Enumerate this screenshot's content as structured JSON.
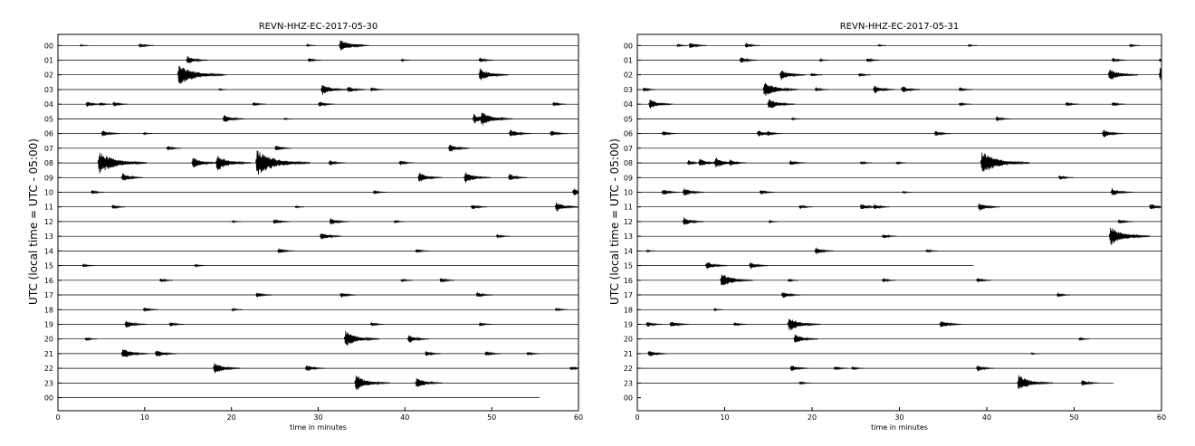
{
  "chart_data": [
    {
      "type": "line",
      "title": "REVN-HHZ-EC-2017-05-30",
      "xlabel": "time in minutes",
      "ylabel": "UTC (local time = UTC - 05:00)",
      "xlim": [
        0,
        60
      ],
      "xticks": [
        0,
        10,
        20,
        30,
        40,
        50,
        60
      ],
      "tick_labels": [
        "00",
        "01",
        "02",
        "03",
        "04",
        "05",
        "06",
        "07",
        "08",
        "09",
        "10",
        "11",
        "12",
        "13",
        "14",
        "15",
        "16",
        "17",
        "18",
        "19",
        "20",
        "21",
        "22",
        "23",
        "00"
      ],
      "trace_color": "#000000",
      "trace_end_minute": [
        60,
        60,
        60,
        60,
        60,
        60,
        60,
        60,
        60,
        60,
        60,
        60,
        60,
        60,
        60,
        60,
        60,
        60,
        60,
        60,
        60,
        60,
        60,
        60,
        55.5
      ],
      "events": [
        {
          "hour": 0,
          "minute": 2.5,
          "amp": 0.12
        },
        {
          "hour": 0,
          "minute": 9.3,
          "amp": 0.35
        },
        {
          "hour": 0,
          "minute": 28.6,
          "amp": 0.15
        },
        {
          "hour": 0,
          "minute": 32.4,
          "amp": 0.9
        },
        {
          "hour": 0,
          "minute": 34.0,
          "amp": 0.3
        },
        {
          "hour": 1,
          "minute": 14.8,
          "amp": 0.6
        },
        {
          "hour": 1,
          "minute": 28.8,
          "amp": 0.3
        },
        {
          "hour": 1,
          "minute": 39.5,
          "amp": 0.15
        },
        {
          "hour": 1,
          "minute": 48.5,
          "amp": 0.35
        },
        {
          "hour": 2,
          "minute": 13.8,
          "amp": 1.5
        },
        {
          "hour": 2,
          "minute": 18.5,
          "amp": 0.1
        },
        {
          "hour": 2,
          "minute": 48.5,
          "amp": 0.9
        },
        {
          "hour": 3,
          "minute": 18.5,
          "amp": 0.12
        },
        {
          "hour": 3,
          "minute": 30.3,
          "amp": 0.8
        },
        {
          "hour": 3,
          "minute": 33.3,
          "amp": 0.5
        },
        {
          "hour": 3,
          "minute": 36.0,
          "amp": 0.3
        },
        {
          "hour": 4,
          "minute": 3.2,
          "amp": 0.4
        },
        {
          "hour": 4,
          "minute": 4.7,
          "amp": 0.25
        },
        {
          "hour": 4,
          "minute": 6.3,
          "amp": 0.35
        },
        {
          "hour": 4,
          "minute": 22.4,
          "amp": 0.3
        },
        {
          "hour": 4,
          "minute": 30.0,
          "amp": 0.4
        },
        {
          "hour": 4,
          "minute": 57.0,
          "amp": 0.3
        },
        {
          "hour": 5,
          "minute": 19.0,
          "amp": 0.6
        },
        {
          "hour": 5,
          "minute": 26.0,
          "amp": 0.12
        },
        {
          "hour": 5,
          "minute": 47.8,
          "amp": 0.7
        },
        {
          "hour": 5,
          "minute": 48.7,
          "amp": 1.0
        },
        {
          "hour": 6,
          "minute": 5.0,
          "amp": 0.5
        },
        {
          "hour": 6,
          "minute": 9.8,
          "amp": 0.15
        },
        {
          "hour": 6,
          "minute": 52.0,
          "amp": 0.6
        },
        {
          "hour": 6,
          "minute": 56.7,
          "amp": 0.45
        },
        {
          "hour": 7,
          "minute": 12.5,
          "amp": 0.35
        },
        {
          "hour": 7,
          "minute": 25.0,
          "amp": 0.4
        },
        {
          "hour": 7,
          "minute": 45.0,
          "amp": 0.6
        },
        {
          "hour": 8,
          "minute": 4.6,
          "amp": 1.6
        },
        {
          "hour": 8,
          "minute": 5.8,
          "amp": 0.8
        },
        {
          "hour": 8,
          "minute": 15.4,
          "amp": 0.8
        },
        {
          "hour": 8,
          "minute": 18.2,
          "amp": 1.1
        },
        {
          "hour": 8,
          "minute": 22.8,
          "amp": 1.8
        },
        {
          "hour": 8,
          "minute": 31.2,
          "amp": 0.4
        },
        {
          "hour": 8,
          "minute": 39.3,
          "amp": 0.35
        },
        {
          "hour": 9,
          "minute": 7.3,
          "amp": 0.6
        },
        {
          "hour": 9,
          "minute": 41.5,
          "amp": 0.7
        },
        {
          "hour": 9,
          "minute": 46.8,
          "amp": 0.8
        },
        {
          "hour": 9,
          "minute": 51.9,
          "amp": 0.5
        },
        {
          "hour": 10,
          "minute": 3.8,
          "amp": 0.3
        },
        {
          "hour": 10,
          "minute": 36.3,
          "amp": 0.3
        },
        {
          "hour": 10,
          "minute": 59.3,
          "amp": 0.6
        },
        {
          "hour": 11,
          "minute": 6.2,
          "amp": 0.3
        },
        {
          "hour": 11,
          "minute": 27.3,
          "amp": 0.15
        },
        {
          "hour": 11,
          "minute": 47.6,
          "amp": 0.4
        },
        {
          "hour": 11,
          "minute": 57.3,
          "amp": 0.7
        },
        {
          "hour": 12,
          "minute": 20.0,
          "amp": 0.15
        },
        {
          "hour": 12,
          "minute": 24.8,
          "amp": 0.4
        },
        {
          "hour": 12,
          "minute": 31.3,
          "amp": 0.5
        },
        {
          "hour": 12,
          "minute": 38.7,
          "amp": 0.2
        },
        {
          "hour": 13,
          "minute": 30.2,
          "amp": 0.6
        },
        {
          "hour": 13,
          "minute": 50.5,
          "amp": 0.3
        },
        {
          "hour": 14,
          "minute": 25.3,
          "amp": 0.4
        },
        {
          "hour": 14,
          "minute": 41.2,
          "amp": 0.3
        },
        {
          "hour": 15,
          "minute": 2.8,
          "amp": 0.25
        },
        {
          "hour": 15,
          "minute": 15.7,
          "amp": 0.2
        },
        {
          "hour": 16,
          "minute": 11.7,
          "amp": 0.3
        },
        {
          "hour": 16,
          "minute": 39.5,
          "amp": 0.25
        },
        {
          "hour": 16,
          "minute": 44.0,
          "amp": 0.35
        },
        {
          "hour": 17,
          "minute": 22.8,
          "amp": 0.4
        },
        {
          "hour": 17,
          "minute": 32.5,
          "amp": 0.4
        },
        {
          "hour": 17,
          "minute": 48.2,
          "amp": 0.4
        },
        {
          "hour": 18,
          "minute": 9.8,
          "amp": 0.35
        },
        {
          "hour": 18,
          "minute": 20.0,
          "amp": 0.2
        },
        {
          "hour": 18,
          "minute": 57.3,
          "amp": 0.25
        },
        {
          "hour": 19,
          "minute": 7.7,
          "amp": 0.6
        },
        {
          "hour": 19,
          "minute": 12.8,
          "amp": 0.35
        },
        {
          "hour": 19,
          "minute": 36.0,
          "amp": 0.3
        },
        {
          "hour": 19,
          "minute": 48.5,
          "amp": 0.3
        },
        {
          "hour": 20,
          "minute": 3.1,
          "amp": 0.25
        },
        {
          "hour": 20,
          "minute": 33.0,
          "amp": 1.1
        },
        {
          "hour": 20,
          "minute": 40.3,
          "amp": 0.6
        },
        {
          "hour": 21,
          "minute": 7.3,
          "amp": 0.8
        },
        {
          "hour": 21,
          "minute": 11.2,
          "amp": 0.6
        },
        {
          "hour": 21,
          "minute": 42.3,
          "amp": 0.4
        },
        {
          "hour": 21,
          "minute": 49.2,
          "amp": 0.4
        },
        {
          "hour": 21,
          "minute": 54.0,
          "amp": 0.3
        },
        {
          "hour": 22,
          "minute": 17.9,
          "amp": 0.8
        },
        {
          "hour": 22,
          "minute": 28.5,
          "amp": 0.5
        },
        {
          "hour": 22,
          "minute": 59.0,
          "amp": 0.3
        },
        {
          "hour": 23,
          "minute": 34.2,
          "amp": 1.1
        },
        {
          "hour": 23,
          "minute": 41.2,
          "amp": 0.8
        }
      ]
    },
    {
      "type": "line",
      "title": "REVN-HHZ-EC-2017-05-31",
      "xlabel": "time in minutes",
      "ylabel": "UTC (local time = UTC - 05:00)",
      "xlim": [
        0,
        60
      ],
      "xticks": [
        0,
        10,
        20,
        30,
        40,
        50,
        60
      ],
      "tick_labels": [
        "00",
        "01",
        "02",
        "03",
        "04",
        "05",
        "06",
        "07",
        "08",
        "09",
        "10",
        "11",
        "12",
        "13",
        "14",
        "15",
        "16",
        "17",
        "18",
        "19",
        "20",
        "21",
        "22",
        "23",
        "00"
      ],
      "trace_color": "#000000",
      "trace_end_minute": [
        60,
        60,
        60,
        60,
        60,
        60,
        60,
        60,
        60,
        60,
        60,
        60,
        60,
        60,
        60,
        38.5,
        60,
        60,
        60,
        60,
        60,
        60,
        60,
        54.5,
        0
      ],
      "events": [
        {
          "hour": 0,
          "minute": 4.5,
          "amp": 0.2
        },
        {
          "hour": 0,
          "minute": 5.9,
          "amp": 0.45
        },
        {
          "hour": 0,
          "minute": 12.3,
          "amp": 0.35
        },
        {
          "hour": 0,
          "minute": 27.5,
          "amp": 0.12
        },
        {
          "hour": 0,
          "minute": 37.8,
          "amp": 0.15
        },
        {
          "hour": 0,
          "minute": 56.3,
          "amp": 0.2
        },
        {
          "hour": 1,
          "minute": 11.7,
          "amp": 0.45
        },
        {
          "hour": 1,
          "minute": 20.8,
          "amp": 0.15
        },
        {
          "hour": 1,
          "minute": 26.2,
          "amp": 0.3
        },
        {
          "hour": 1,
          "minute": 54.3,
          "amp": 0.35
        },
        {
          "hour": 1,
          "minute": 59.7,
          "amp": 0.25
        },
        {
          "hour": 2,
          "minute": 16.3,
          "amp": 0.75
        },
        {
          "hour": 2,
          "minute": 19.8,
          "amp": 0.25
        },
        {
          "hour": 2,
          "minute": 25.3,
          "amp": 0.25
        },
        {
          "hour": 2,
          "minute": 53.9,
          "amp": 0.9
        },
        {
          "hour": 2,
          "minute": 59.7,
          "amp": 1.0
        },
        {
          "hour": 3,
          "minute": 0.6,
          "amp": 0.3
        },
        {
          "hour": 3,
          "minute": 14.4,
          "amp": 1.1
        },
        {
          "hour": 3,
          "minute": 20.3,
          "amp": 0.3
        },
        {
          "hour": 3,
          "minute": 27.0,
          "amp": 0.6
        },
        {
          "hour": 3,
          "minute": 30.2,
          "amp": 0.5
        },
        {
          "hour": 3,
          "minute": 36.8,
          "amp": 0.3
        },
        {
          "hour": 4,
          "minute": 1.3,
          "amp": 0.7
        },
        {
          "hour": 4,
          "minute": 14.9,
          "amp": 0.8
        },
        {
          "hour": 4,
          "minute": 36.8,
          "amp": 0.25
        },
        {
          "hour": 4,
          "minute": 49.0,
          "amp": 0.3
        },
        {
          "hour": 4,
          "minute": 54.3,
          "amp": 0.3
        },
        {
          "hour": 5,
          "minute": 17.6,
          "amp": 0.15
        },
        {
          "hour": 5,
          "minute": 41.0,
          "amp": 0.35
        },
        {
          "hour": 6,
          "minute": 2.8,
          "amp": 0.35
        },
        {
          "hour": 6,
          "minute": 13.7,
          "amp": 0.5
        },
        {
          "hour": 6,
          "minute": 14.8,
          "amp": 0.35
        },
        {
          "hour": 6,
          "minute": 34.0,
          "amp": 0.4
        },
        {
          "hour": 6,
          "minute": 53.2,
          "amp": 0.6
        },
        {
          "hour": 8,
          "minute": 5.7,
          "amp": 0.35
        },
        {
          "hour": 8,
          "minute": 7.0,
          "amp": 0.6
        },
        {
          "hour": 8,
          "minute": 8.8,
          "amp": 0.8
        },
        {
          "hour": 8,
          "minute": 10.5,
          "amp": 0.45
        },
        {
          "hour": 8,
          "minute": 17.4,
          "amp": 0.4
        },
        {
          "hour": 8,
          "minute": 25.5,
          "amp": 0.25
        },
        {
          "hour": 8,
          "minute": 29.6,
          "amp": 0.2
        },
        {
          "hour": 8,
          "minute": 39.3,
          "amp": 1.6
        },
        {
          "hour": 9,
          "minute": 48.2,
          "amp": 0.35
        },
        {
          "hour": 10,
          "minute": 2.8,
          "amp": 0.45
        },
        {
          "hour": 10,
          "minute": 5.2,
          "amp": 0.6
        },
        {
          "hour": 10,
          "minute": 14.0,
          "amp": 0.35
        },
        {
          "hour": 10,
          "minute": 30.3,
          "amp": 0.15
        },
        {
          "hour": 10,
          "minute": 54.2,
          "amp": 0.6
        },
        {
          "hour": 11,
          "minute": 18.5,
          "amp": 0.3
        },
        {
          "hour": 11,
          "minute": 25.5,
          "amp": 0.5
        },
        {
          "hour": 11,
          "minute": 27.0,
          "amp": 0.4
        },
        {
          "hour": 11,
          "minute": 39.0,
          "amp": 0.6
        },
        {
          "hour": 11,
          "minute": 58.6,
          "amp": 0.5
        },
        {
          "hour": 12,
          "minute": 5.2,
          "amp": 0.6
        },
        {
          "hour": 12,
          "minute": 15.0,
          "amp": 0.15
        },
        {
          "hour": 12,
          "minute": 55.0,
          "amp": 0.35
        },
        {
          "hour": 13,
          "minute": 28.0,
          "amp": 0.35
        },
        {
          "hour": 13,
          "minute": 54.0,
          "amp": 1.3
        },
        {
          "hour": 13,
          "minute": 56.6,
          "amp": 0.35
        },
        {
          "hour": 14,
          "minute": 1.0,
          "amp": 0.15
        },
        {
          "hour": 14,
          "minute": 20.3,
          "amp": 0.5
        },
        {
          "hour": 14,
          "minute": 33.0,
          "amp": 0.25
        },
        {
          "hour": 15,
          "minute": 7.8,
          "amp": 0.6
        },
        {
          "hour": 15,
          "minute": 12.8,
          "amp": 0.5
        },
        {
          "hour": 16,
          "minute": 9.5,
          "amp": 1.0
        },
        {
          "hour": 16,
          "minute": 17.2,
          "amp": 0.2
        },
        {
          "hour": 16,
          "minute": 28.0,
          "amp": 0.3
        },
        {
          "hour": 16,
          "minute": 38.8,
          "amp": 0.35
        },
        {
          "hour": 17,
          "minute": 16.5,
          "amp": 0.5
        },
        {
          "hour": 17,
          "minute": 48.0,
          "amp": 0.3
        },
        {
          "hour": 18,
          "minute": 8.7,
          "amp": 0.15
        },
        {
          "hour": 19,
          "minute": 1.0,
          "amp": 0.4
        },
        {
          "hour": 19,
          "minute": 3.7,
          "amp": 0.5
        },
        {
          "hour": 19,
          "minute": 11.0,
          "amp": 0.3
        },
        {
          "hour": 19,
          "minute": 17.2,
          "amp": 1.0
        },
        {
          "hour": 19,
          "minute": 34.6,
          "amp": 0.6
        },
        {
          "hour": 20,
          "minute": 17.9,
          "amp": 0.7
        },
        {
          "hour": 20,
          "minute": 50.5,
          "amp": 0.2
        },
        {
          "hour": 21,
          "minute": 1.2,
          "amp": 0.5
        },
        {
          "hour": 21,
          "minute": 45.0,
          "amp": 0.12
        },
        {
          "hour": 22,
          "minute": 17.5,
          "amp": 0.45
        },
        {
          "hour": 22,
          "minute": 22.5,
          "amp": 0.3
        },
        {
          "hour": 22,
          "minute": 24.5,
          "amp": 0.25
        },
        {
          "hour": 22,
          "minute": 38.8,
          "amp": 0.45
        },
        {
          "hour": 23,
          "minute": 18.5,
          "amp": 0.25
        },
        {
          "hour": 23,
          "minute": 43.5,
          "amp": 1.1
        },
        {
          "hour": 23,
          "minute": 50.8,
          "amp": 0.45
        }
      ]
    }
  ]
}
